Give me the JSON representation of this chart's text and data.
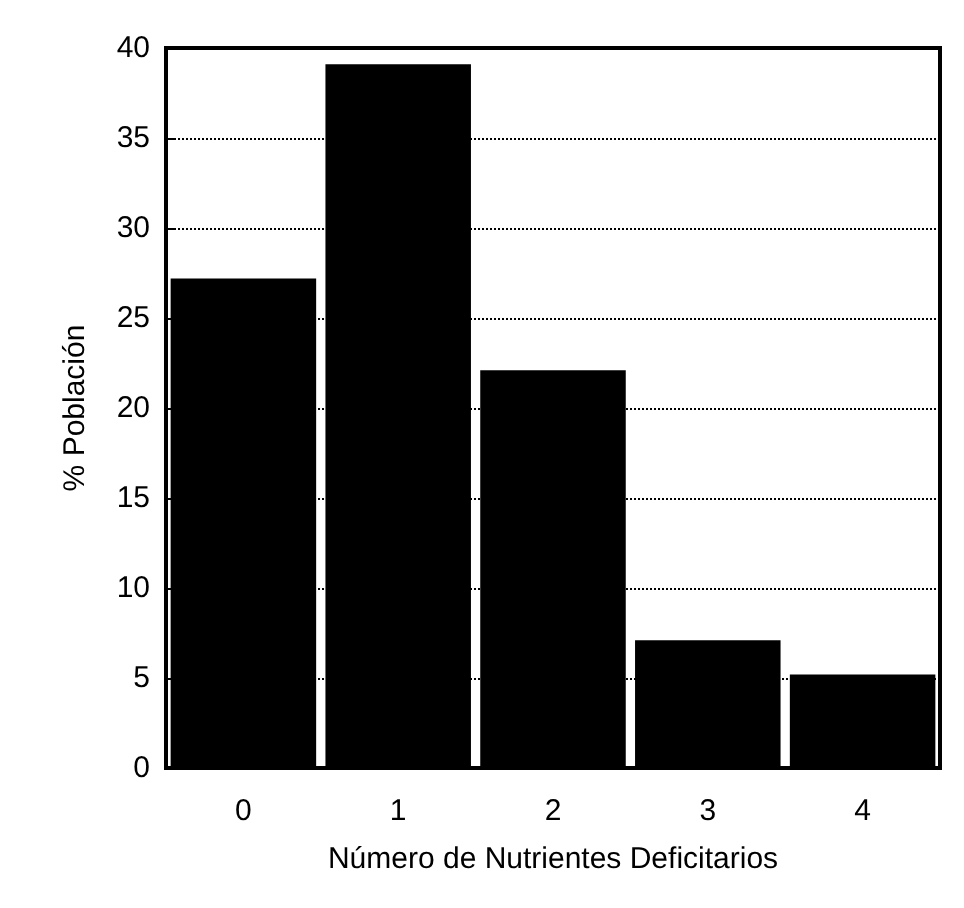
{
  "chart_data": {
    "type": "bar",
    "xlabel": "Número de Nutrientes Deficitarios",
    "ylabel": "% Población",
    "categories": [
      "0",
      "1",
      "2",
      "3",
      "4"
    ],
    "values": [
      27.2,
      39.1,
      22.1,
      7.1,
      5.2
    ],
    "color": "#000000",
    "ylim": [
      0,
      40
    ],
    "yticks": [
      0,
      5,
      10,
      15,
      20,
      25,
      30,
      35,
      40
    ],
    "grid": "y"
  }
}
